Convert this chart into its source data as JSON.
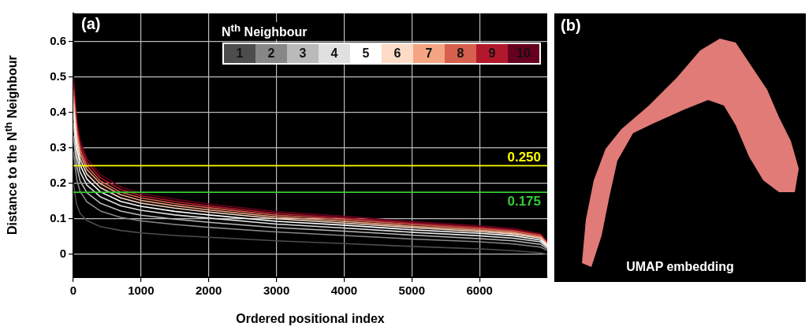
{
  "chart_data": [
    {
      "type": "line",
      "title": "(a)",
      "xlabel": "Ordered positional index",
      "ylabel": "Distance to the N$^{th}$ Neighbour",
      "legend_title": "N$^{th}$ Neighbour",
      "legend": "top right",
      "grid": true,
      "marker": "none",
      "x": [
        0,
        50,
        100,
        200,
        400,
        700,
        1000,
        1500,
        2000,
        3000,
        4000,
        5000,
        6000,
        6500,
        6900,
        7000
      ],
      "xlim": [
        0,
        7000
      ],
      "ylim": [
        -0.065,
        0.68
      ],
      "xticks": [
        0,
        1000,
        2000,
        3000,
        4000,
        5000,
        6000
      ],
      "yticks": [
        0,
        0.1,
        0.2,
        0.3,
        0.4,
        0.5,
        0.6
      ],
      "series": [
        {
          "name": "1",
          "color": "#4d4d4d",
          "values": [
            0.2,
            0.14,
            0.115,
            0.095,
            0.078,
            0.067,
            0.06,
            0.053,
            0.048,
            0.038,
            0.03,
            0.022,
            0.015,
            0.01,
            0.004,
            0.0
          ]
        },
        {
          "name": "2",
          "color": "#878787",
          "values": [
            0.29,
            0.212,
            0.177,
            0.148,
            0.122,
            0.104,
            0.094,
            0.084,
            0.076,
            0.063,
            0.053,
            0.043,
            0.035,
            0.029,
            0.02,
            0.011
          ]
        },
        {
          "name": "3",
          "color": "#bababa",
          "values": [
            0.335,
            0.248,
            0.207,
            0.174,
            0.144,
            0.122,
            0.11,
            0.099,
            0.09,
            0.075,
            0.065,
            0.054,
            0.044,
            0.038,
            0.028,
            0.016
          ]
        },
        {
          "name": "4",
          "color": "#e0e0e0",
          "values": [
            0.371,
            0.277,
            0.232,
            0.195,
            0.162,
            0.137,
            0.124,
            0.111,
            0.102,
            0.085,
            0.074,
            0.062,
            0.052,
            0.045,
            0.035,
            0.02
          ]
        },
        {
          "name": "5",
          "color": "#ffffff",
          "values": [
            0.401,
            0.301,
            0.252,
            0.212,
            0.176,
            0.149,
            0.135,
            0.121,
            0.111,
            0.093,
            0.082,
            0.069,
            0.059,
            0.052,
            0.04,
            0.023
          ]
        },
        {
          "name": "6",
          "color": "#fddbc7",
          "values": [
            0.425,
            0.32,
            0.269,
            0.226,
            0.188,
            0.159,
            0.144,
            0.13,
            0.119,
            0.1,
            0.088,
            0.075,
            0.064,
            0.057,
            0.045,
            0.026
          ]
        },
        {
          "name": "7",
          "color": "#f4a582",
          "values": [
            0.446,
            0.337,
            0.283,
            0.239,
            0.199,
            0.168,
            0.152,
            0.137,
            0.125,
            0.105,
            0.093,
            0.079,
            0.068,
            0.061,
            0.048,
            0.029
          ]
        },
        {
          "name": "8",
          "color": "#d6604d",
          "values": [
            0.464,
            0.351,
            0.295,
            0.249,
            0.207,
            0.175,
            0.159,
            0.143,
            0.131,
            0.11,
            0.098,
            0.084,
            0.072,
            0.065,
            0.052,
            0.031
          ]
        },
        {
          "name": "9",
          "color": "#b2182b",
          "values": [
            0.482,
            0.366,
            0.308,
            0.26,
            0.216,
            0.183,
            0.165,
            0.149,
            0.136,
            0.115,
            0.102,
            0.088,
            0.076,
            0.068,
            0.055,
            0.033
          ]
        },
        {
          "name": "10",
          "color": "#67001f",
          "values": [
            0.5,
            0.38,
            0.32,
            0.27,
            0.225,
            0.19,
            0.172,
            0.155,
            0.142,
            0.12,
            0.107,
            0.092,
            0.08,
            0.072,
            0.058,
            0.035
          ]
        }
      ],
      "ref_lines": [
        {
          "axis": "y",
          "value": 0.25,
          "label": "0.250",
          "color": "#ffff00"
        },
        {
          "axis": "y",
          "value": 0.175,
          "label": "0.175",
          "color": "#33cc33"
        }
      ]
    },
    {
      "type": "other",
      "title": "(b)",
      "annotations": [
        "UMAP embedding"
      ]
    }
  ]
}
